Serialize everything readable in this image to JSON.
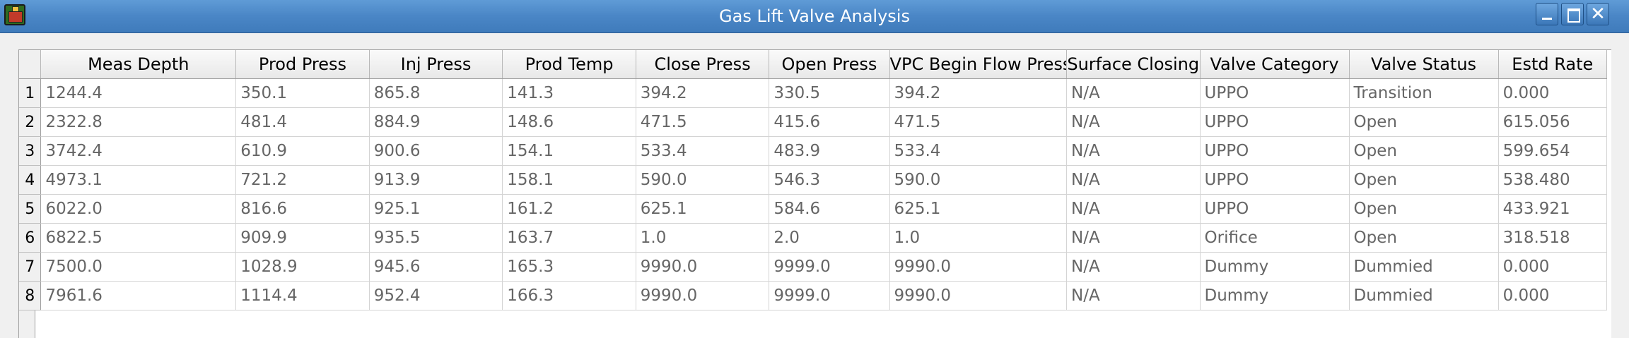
{
  "window": {
    "title": "Gas Lift Valve Analysis",
    "icons": {
      "app": "app-icon",
      "minimize": "minimize-icon",
      "maximize": "maximize-icon",
      "close": "close-icon"
    },
    "close_glyph": "✕"
  },
  "table": {
    "columns": [
      "Meas Depth",
      "Prod Press",
      "Inj Press",
      "Prod Temp",
      "Close Press",
      "Open Press",
      "VPC Begin Flow Press",
      "Surface Closing",
      "Valve Category",
      "Valve Status",
      "Estd Rate"
    ],
    "rows": [
      {
        "num": "1",
        "cells": [
          "1244.4",
          "350.1",
          "865.8",
          "141.3",
          "394.2",
          "330.5",
          "394.2",
          "N/A",
          "UPPO",
          "Transition",
          "0.000"
        ]
      },
      {
        "num": "2",
        "cells": [
          "2322.8",
          "481.4",
          "884.9",
          "148.6",
          "471.5",
          "415.6",
          "471.5",
          "N/A",
          "UPPO",
          "Open",
          "615.056"
        ]
      },
      {
        "num": "3",
        "cells": [
          "3742.4",
          "610.9",
          "900.6",
          "154.1",
          "533.4",
          "483.9",
          "533.4",
          "N/A",
          "UPPO",
          "Open",
          "599.654"
        ]
      },
      {
        "num": "4",
        "cells": [
          "4973.1",
          "721.2",
          "913.9",
          "158.1",
          "590.0",
          "546.3",
          "590.0",
          "N/A",
          "UPPO",
          "Open",
          "538.480"
        ]
      },
      {
        "num": "5",
        "cells": [
          "6022.0",
          "816.6",
          "925.1",
          "161.2",
          "625.1",
          "584.6",
          "625.1",
          "N/A",
          "UPPO",
          "Open",
          "433.921"
        ]
      },
      {
        "num": "6",
        "cells": [
          "6822.5",
          "909.9",
          "935.5",
          "163.7",
          "1.0",
          "2.0",
          "1.0",
          "N/A",
          "Orifice",
          "Open",
          "318.518"
        ]
      },
      {
        "num": "7",
        "cells": [
          "7500.0",
          "1028.9",
          "945.6",
          "165.3",
          "9990.0",
          "9999.0",
          "9990.0",
          "N/A",
          "Dummy",
          "Dummied",
          "0.000"
        ]
      },
      {
        "num": "8",
        "cells": [
          "7961.6",
          "1114.4",
          "952.4",
          "166.3",
          "9990.0",
          "9999.0",
          "9990.0",
          "N/A",
          "Dummy",
          "Dummied",
          "0.000"
        ]
      }
    ]
  }
}
